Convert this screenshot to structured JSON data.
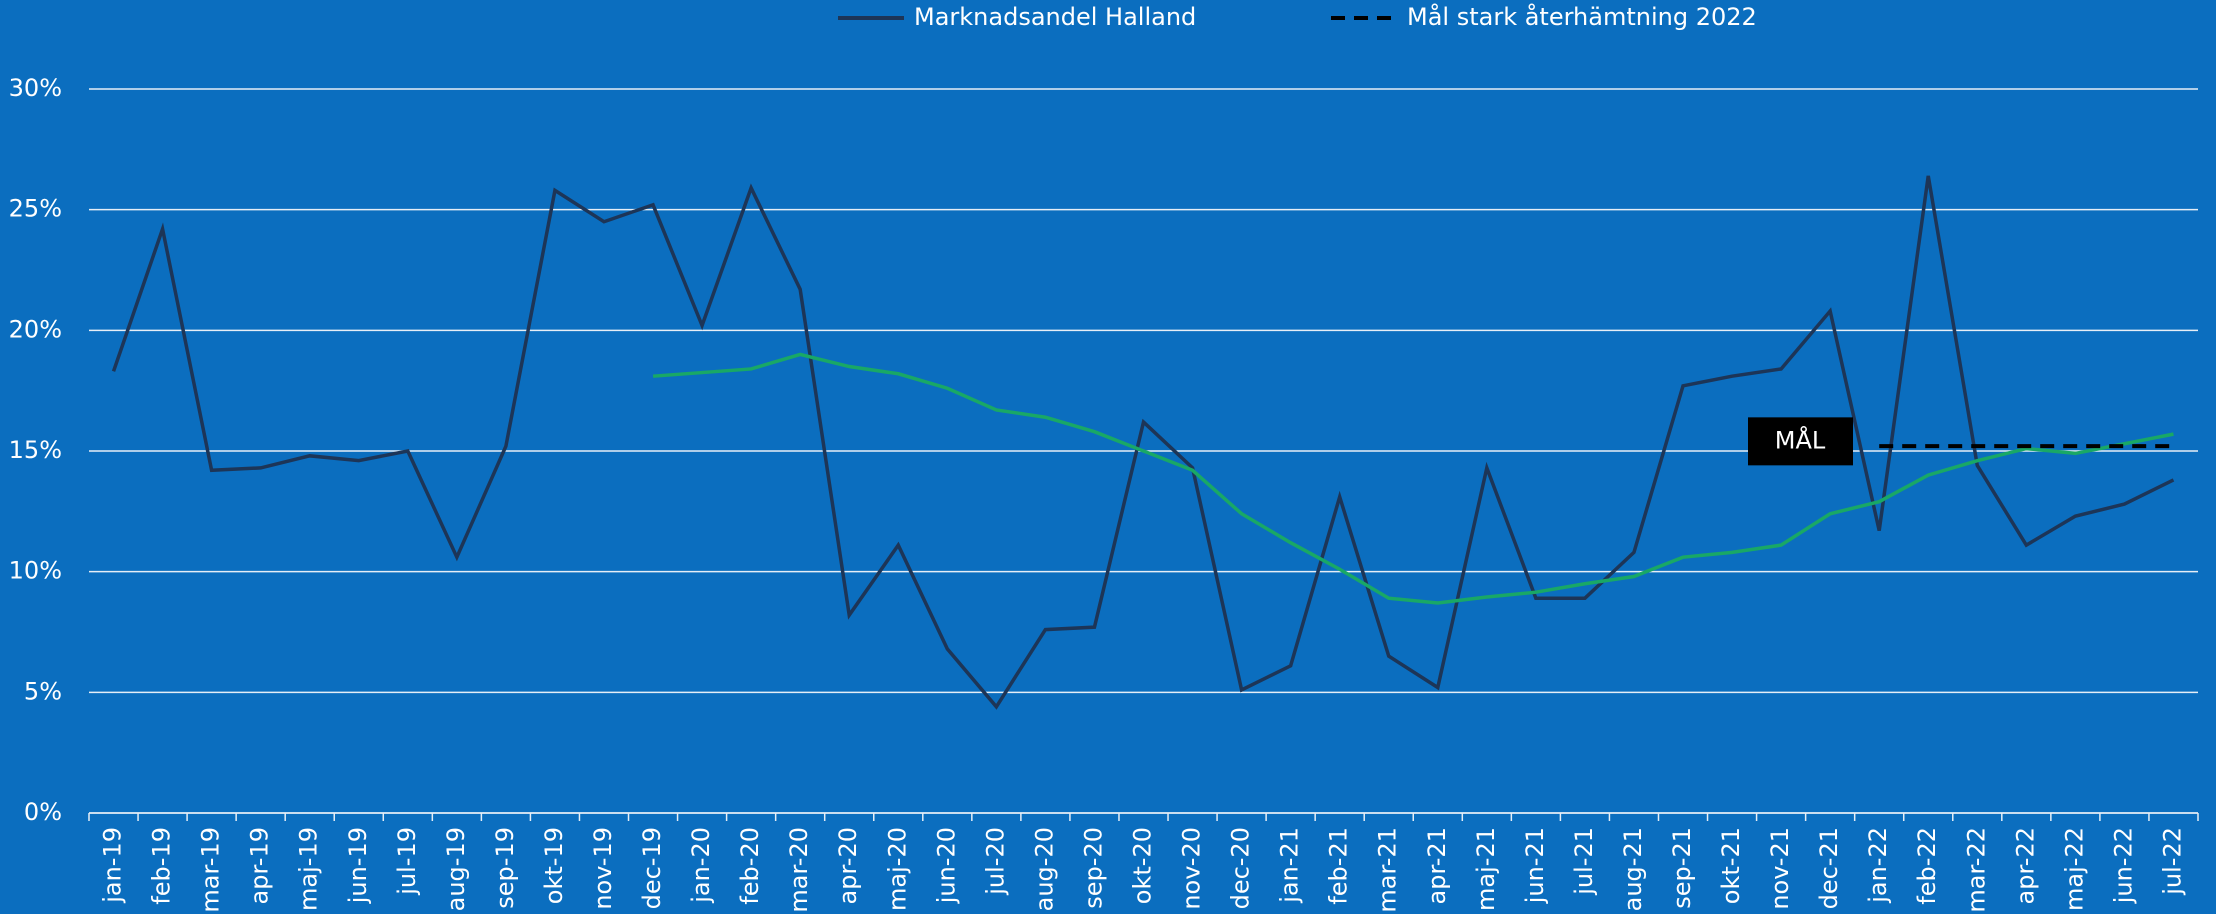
{
  "chart_data": {
    "type": "line",
    "categories": [
      "jan-19",
      "feb-19",
      "mar-19",
      "apr-19",
      "maj-19",
      "jun-19",
      "jul-19",
      "aug-19",
      "sep-19",
      "okt-19",
      "nov-19",
      "dec-19",
      "jan-20",
      "feb-20",
      "mar-20",
      "apr-20",
      "maj-20",
      "jun-20",
      "jul-20",
      "aug-20",
      "sep-20",
      "okt-20",
      "nov-20",
      "dec-20",
      "jan-21",
      "feb-21",
      "mar-21",
      "apr-21",
      "maj-21",
      "jun-21",
      "jul-21",
      "aug-21",
      "sep-21",
      "okt-21",
      "nov-21",
      "dec-21",
      "jan-22",
      "feb-22",
      "mar-22",
      "apr-22",
      "maj-22",
      "jun-22",
      "jul-22"
    ],
    "series": [
      {
        "name": "Marknadsandel Halland",
        "color": "#1d3557",
        "dash": false,
        "values": [
          18.3,
          24.2,
          14.2,
          14.3,
          14.8,
          14.6,
          15.0,
          10.6,
          15.2,
          25.8,
          24.5,
          25.2,
          20.2,
          25.9,
          21.7,
          8.2,
          11.1,
          6.8,
          4.4,
          7.6,
          7.7,
          16.2,
          14.3,
          5.1,
          6.1,
          13.1,
          6.5,
          5.2,
          14.3,
          8.9,
          8.9,
          10.8,
          17.7,
          18.1,
          18.4,
          20.8,
          11.7,
          26.4,
          14.4,
          11.1,
          12.3,
          12.8,
          13.8
        ]
      },
      {
        "color": "#19a866",
        "dash": false,
        "values": [
          null,
          null,
          null,
          null,
          null,
          null,
          null,
          null,
          null,
          null,
          null,
          18.1,
          18.25,
          18.4,
          19.0,
          18.5,
          18.2,
          17.6,
          16.7,
          16.4,
          15.8,
          15.0,
          14.2,
          12.4,
          11.2,
          10.1,
          8.9,
          8.7,
          8.95,
          9.15,
          9.5,
          9.8,
          10.6,
          10.8,
          11.1,
          12.4,
          12.9,
          14.0,
          14.6,
          15.1,
          14.9,
          15.3,
          15.7
        ]
      },
      {
        "name": "Mål stark återhämtning 2022",
        "color": "#000000",
        "dash": true,
        "values": [
          null,
          null,
          null,
          null,
          null,
          null,
          null,
          null,
          null,
          null,
          null,
          null,
          null,
          null,
          null,
          null,
          null,
          null,
          null,
          null,
          null,
          null,
          null,
          null,
          null,
          null,
          null,
          null,
          null,
          null,
          null,
          null,
          null,
          null,
          null,
          null,
          15.2,
          15.2,
          15.2,
          15.2,
          15.2,
          15.2,
          15.2
        ]
      }
    ],
    "annotation": "MÅL",
    "ylim": [
      0,
      30
    ],
    "yticks": [
      {
        "value": 0,
        "label": "0%"
      },
      {
        "value": 5,
        "label": "5%"
      },
      {
        "value": 10,
        "label": "10%"
      },
      {
        "value": 15,
        "label": "15%"
      },
      {
        "value": 20,
        "label": "20%"
      },
      {
        "value": 25,
        "label": "25%"
      },
      {
        "value": 30,
        "label": "30%"
      }
    ],
    "grid": true,
    "legend": "top"
  }
}
